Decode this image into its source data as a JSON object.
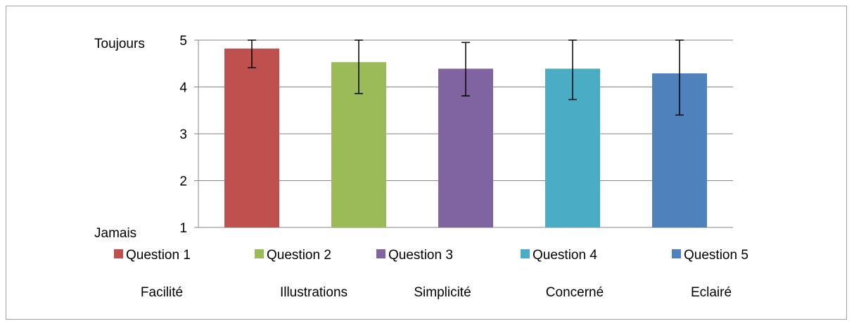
{
  "chart_data": {
    "type": "bar",
    "categories": [
      "Facilité",
      "Illustrations",
      "Simplicité",
      "Concerné",
      "Eclairé"
    ],
    "series": [
      {
        "name": "Question 1",
        "value": 4.82,
        "error_low": 4.41,
        "error_high": 5.0,
        "color": "#c0504d"
      },
      {
        "name": "Question 2",
        "value": 4.53,
        "error_low": 3.86,
        "error_high": 5.0,
        "color": "#9bbb59"
      },
      {
        "name": "Question 3",
        "value": 4.39,
        "error_low": 3.81,
        "error_high": 4.95,
        "color": "#8064a2"
      },
      {
        "name": "Question 4",
        "value": 4.39,
        "error_low": 3.73,
        "error_high": 5.0,
        "color": "#4bacc6"
      },
      {
        "name": "Question 5",
        "value": 4.29,
        "error_low": 3.4,
        "error_high": 5.0,
        "color": "#4f81bd"
      }
    ],
    "ylim": [
      1,
      5
    ],
    "yticks": [
      1,
      2,
      3,
      4,
      5
    ],
    "ylabel_top": "Toujours",
    "ylabel_bottom": "Jamais",
    "grid": true,
    "legend_position": "bottom",
    "gridline_color": "#868686"
  }
}
